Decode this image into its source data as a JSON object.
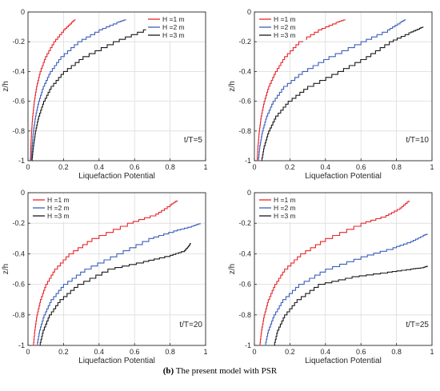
{
  "chart_data": [
    {
      "type": "line",
      "xlabel": "Liquefaction Potential",
      "ylabel": "z/h",
      "xlim": [
        0,
        1
      ],
      "ylim": [
        -1,
        0
      ],
      "xticks": [
        "0",
        "0.2",
        "0.4",
        "0.6",
        "0.8",
        "1"
      ],
      "yticks": [
        "-1",
        "-0.8",
        "-0.6",
        "-0.4",
        "-0.2",
        "0"
      ],
      "grid": true,
      "legend": "top-right",
      "annotation": "t/T=5",
      "series": [
        {
          "name": "H =1 m",
          "color": "#e8262b",
          "points": [
            [
              0.013,
              -1
            ],
            [
              0.016,
              -0.9
            ],
            [
              0.02,
              -0.8
            ],
            [
              0.026,
              -0.7
            ],
            [
              0.035,
              -0.6
            ],
            [
              0.048,
              -0.5
            ],
            [
              0.068,
              -0.4
            ],
            [
              0.098,
              -0.3
            ],
            [
              0.145,
              -0.2
            ],
            [
              0.2,
              -0.12
            ],
            [
              0.245,
              -0.07
            ],
            [
              0.265,
              -0.05
            ]
          ]
        },
        {
          "name": "H =2 m",
          "color": "#3b5fb8",
          "points": [
            [
              0.018,
              -1
            ],
            [
              0.023,
              -0.9
            ],
            [
              0.03,
              -0.8
            ],
            [
              0.042,
              -0.7
            ],
            [
              0.06,
              -0.6
            ],
            [
              0.086,
              -0.5
            ],
            [
              0.125,
              -0.4
            ],
            [
              0.185,
              -0.3
            ],
            [
              0.28,
              -0.2
            ],
            [
              0.4,
              -0.12
            ],
            [
              0.5,
              -0.07
            ],
            [
              0.55,
              -0.05
            ]
          ]
        },
        {
          "name": "H =3 m",
          "color": "#1a1a1a",
          "points": [
            [
              0.022,
              -1
            ],
            [
              0.03,
              -0.9
            ],
            [
              0.042,
              -0.8
            ],
            [
              0.06,
              -0.7
            ],
            [
              0.088,
              -0.6
            ],
            [
              0.13,
              -0.5
            ],
            [
              0.2,
              -0.4
            ],
            [
              0.31,
              -0.3
            ],
            [
              0.48,
              -0.2
            ],
            [
              0.65,
              -0.12
            ],
            [
              0.74,
              -0.07
            ],
            [
              0.765,
              -0.05
            ]
          ]
        }
      ]
    },
    {
      "type": "line",
      "xlabel": "Liquefaction Potential",
      "ylabel": "z/h",
      "xlim": [
        0,
        1
      ],
      "ylim": [
        -1,
        0
      ],
      "xticks": [
        "0",
        "0.2",
        "0.4",
        "0.6",
        "0.8",
        "1"
      ],
      "yticks": [
        "-1",
        "-0.8",
        "-0.6",
        "-0.4",
        "-0.2",
        "0"
      ],
      "grid": true,
      "legend": "top-left",
      "annotation": "t/T=10",
      "series": [
        {
          "name": "H =1 m",
          "color": "#e8262b",
          "points": [
            [
              0.015,
              -1
            ],
            [
              0.02,
              -0.9
            ],
            [
              0.027,
              -0.8
            ],
            [
              0.038,
              -0.7
            ],
            [
              0.055,
              -0.6
            ],
            [
              0.08,
              -0.5
            ],
            [
              0.118,
              -0.4
            ],
            [
              0.17,
              -0.3
            ],
            [
              0.25,
              -0.2
            ],
            [
              0.36,
              -0.12
            ],
            [
              0.46,
              -0.07
            ],
            [
              0.51,
              -0.05
            ]
          ]
        },
        {
          "name": "H =2 m",
          "color": "#3b5fb8",
          "points": [
            [
              0.022,
              -1
            ],
            [
              0.03,
              -0.9
            ],
            [
              0.045,
              -0.8
            ],
            [
              0.068,
              -0.7
            ],
            [
              0.105,
              -0.6
            ],
            [
              0.165,
              -0.5
            ],
            [
              0.27,
              -0.4
            ],
            [
              0.42,
              -0.3
            ],
            [
              0.6,
              -0.2
            ],
            [
              0.75,
              -0.12
            ],
            [
              0.82,
              -0.07
            ],
            [
              0.85,
              -0.05
            ]
          ]
        },
        {
          "name": "H =3 m",
          "color": "#1a1a1a",
          "points": [
            [
              0.04,
              -1
            ],
            [
              0.055,
              -0.9
            ],
            [
              0.08,
              -0.8
            ],
            [
              0.12,
              -0.7
            ],
            [
              0.19,
              -0.6
            ],
            [
              0.3,
              -0.5
            ],
            [
              0.47,
              -0.4
            ],
            [
              0.63,
              -0.3
            ],
            [
              0.76,
              -0.2
            ],
            [
              0.87,
              -0.14
            ],
            [
              0.93,
              -0.11
            ],
            [
              0.95,
              -0.1
            ]
          ]
        }
      ]
    },
    {
      "type": "line",
      "xlabel": "Liquefaction Potential",
      "ylabel": "z/h",
      "xlim": [
        0,
        1
      ],
      "ylim": [
        -1,
        0
      ],
      "xticks": [
        "0",
        "0.2",
        "0.4",
        "0.6",
        "0.8",
        "1"
      ],
      "yticks": [
        "-1",
        "-0.8",
        "-0.6",
        "-0.4",
        "-0.2",
        "0"
      ],
      "grid": true,
      "legend": "top-left",
      "annotation": "t/T=20",
      "series": [
        {
          "name": "H =1 m",
          "color": "#e8262b",
          "points": [
            [
              0.03,
              -1
            ],
            [
              0.038,
              -0.9
            ],
            [
              0.05,
              -0.8
            ],
            [
              0.07,
              -0.7
            ],
            [
              0.1,
              -0.6
            ],
            [
              0.15,
              -0.5
            ],
            [
              0.23,
              -0.4
            ],
            [
              0.36,
              -0.3
            ],
            [
              0.56,
              -0.2
            ],
            [
              0.72,
              -0.14
            ],
            [
              0.8,
              -0.08
            ],
            [
              0.84,
              -0.05
            ]
          ]
        },
        {
          "name": "H =2 m",
          "color": "#3b5fb8",
          "points": [
            [
              0.05,
              -1
            ],
            [
              0.065,
              -0.9
            ],
            [
              0.09,
              -0.8
            ],
            [
              0.13,
              -0.7
            ],
            [
              0.2,
              -0.6
            ],
            [
              0.32,
              -0.5
            ],
            [
              0.5,
              -0.4
            ],
            [
              0.68,
              -0.3
            ],
            [
              0.82,
              -0.25
            ],
            [
              0.92,
              -0.22
            ],
            [
              0.97,
              -0.2
            ]
          ]
        },
        {
          "name": "H =3 m",
          "color": "#1a1a1a",
          "points": [
            [
              0.065,
              -1
            ],
            [
              0.085,
              -0.9
            ],
            [
              0.12,
              -0.8
            ],
            [
              0.18,
              -0.7
            ],
            [
              0.28,
              -0.6
            ],
            [
              0.45,
              -0.5
            ],
            [
              0.65,
              -0.45
            ],
            [
              0.8,
              -0.41
            ],
            [
              0.88,
              -0.38
            ],
            [
              0.91,
              -0.34
            ],
            [
              0.915,
              -0.33
            ]
          ]
        }
      ]
    },
    {
      "type": "line",
      "xlabel": "Liquefaction Potential",
      "ylabel": "z/h",
      "xlim": [
        0,
        1
      ],
      "ylim": [
        -1,
        0
      ],
      "xticks": [
        "0",
        "0.2",
        "0.4",
        "0.6",
        "0.8",
        "1"
      ],
      "yticks": [
        "-1",
        "-0.8",
        "-0.6",
        "-0.4",
        "-0.2",
        "0"
      ],
      "grid": true,
      "legend": "top-left",
      "annotation": "t/T=25",
      "series": [
        {
          "name": "H =1 m",
          "color": "#e8262b",
          "points": [
            [
              0.03,
              -1
            ],
            [
              0.04,
              -0.9
            ],
            [
              0.055,
              -0.8
            ],
            [
              0.078,
              -0.7
            ],
            [
              0.115,
              -0.6
            ],
            [
              0.17,
              -0.5
            ],
            [
              0.26,
              -0.4
            ],
            [
              0.4,
              -0.3
            ],
            [
              0.6,
              -0.2
            ],
            [
              0.74,
              -0.15
            ],
            [
              0.82,
              -0.1
            ],
            [
              0.87,
              -0.05
            ]
          ]
        },
        {
          "name": "H =2 m",
          "color": "#3b5fb8",
          "points": [
            [
              0.06,
              -1
            ],
            [
              0.078,
              -0.9
            ],
            [
              0.11,
              -0.8
            ],
            [
              0.16,
              -0.7
            ],
            [
              0.25,
              -0.6
            ],
            [
              0.4,
              -0.5
            ],
            [
              0.6,
              -0.42
            ],
            [
              0.78,
              -0.36
            ],
            [
              0.88,
              -0.32
            ],
            [
              0.95,
              -0.28
            ],
            [
              0.975,
              -0.27
            ]
          ]
        },
        {
          "name": "H =3 m",
          "color": "#1a1a1a",
          "points": [
            [
              0.11,
              -1
            ],
            [
              0.13,
              -0.9
            ],
            [
              0.17,
              -0.8
            ],
            [
              0.24,
              -0.7
            ],
            [
              0.36,
              -0.6
            ],
            [
              0.55,
              -0.55
            ],
            [
              0.75,
              -0.52
            ],
            [
              0.88,
              -0.5
            ],
            [
              0.95,
              -0.49
            ],
            [
              0.975,
              -0.48
            ]
          ]
        }
      ]
    }
  ],
  "caption": {
    "label": "(b)",
    "text": " The present model with PSR"
  }
}
